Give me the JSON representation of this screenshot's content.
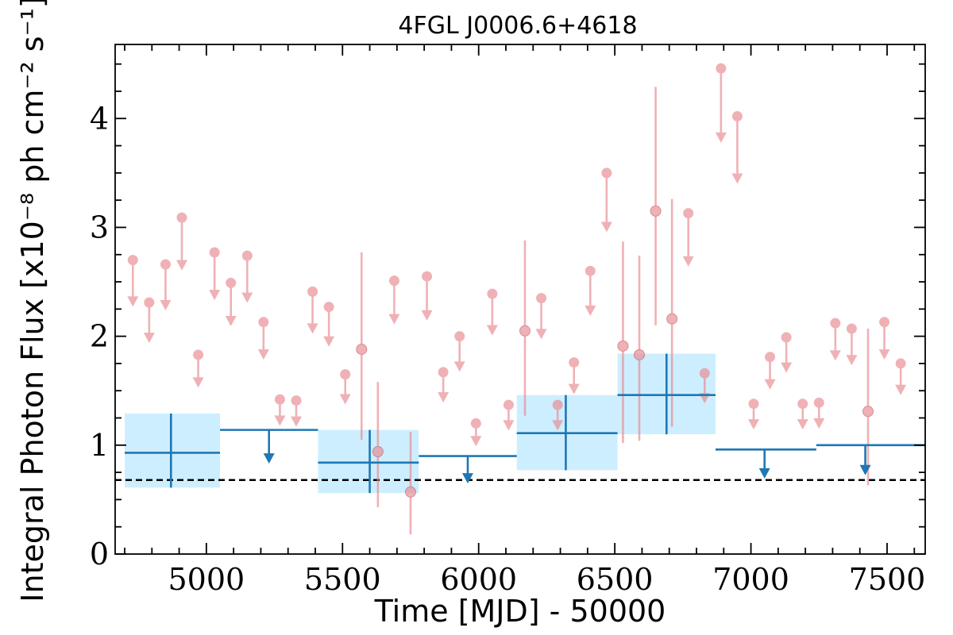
{
  "chart_data": {
    "type": "scatter",
    "title": "4FGL J0006.6+4618",
    "xlabel": "Time [MJD] - 50000",
    "ylabel": "Integral Photon Flux [x10⁻⁸ ph cm⁻² s⁻¹]",
    "xlim": [
      4665,
      7640
    ],
    "ylim": [
      0,
      4.68
    ],
    "x_ticks": [
      5000,
      5500,
      6000,
      6500,
      7000,
      7500
    ],
    "x_tick_labels": [
      "5000",
      "5500",
      "6000",
      "6500",
      "7000",
      "7500"
    ],
    "y_ticks": [
      0,
      1,
      2,
      3,
      4
    ],
    "y_tick_labels": [
      "0",
      "1",
      "2",
      "3",
      "4"
    ],
    "reference_level": 0.68,
    "colors": {
      "short_bins": "#e8888e",
      "long_bins": "#1f77b4",
      "long_bins_band": "#cdeeff",
      "reference_line": "#000000"
    },
    "long_bins": [
      {
        "x": 4870,
        "x_low": 4700,
        "x_high": 5050,
        "y": 0.93,
        "y_low": 0.61,
        "y_high": 1.29,
        "upper_limit": false
      },
      {
        "x": 5230,
        "x_low": 5050,
        "x_high": 5410,
        "y": 1.14,
        "upper_limit": true
      },
      {
        "x": 5600,
        "x_low": 5410,
        "x_high": 5780,
        "y": 0.84,
        "y_low": 0.56,
        "y_high": 1.14,
        "upper_limit": false
      },
      {
        "x": 5960,
        "x_low": 5780,
        "x_high": 6140,
        "y": 0.9,
        "upper_limit": true
      },
      {
        "x": 6320,
        "x_low": 6140,
        "x_high": 6510,
        "y": 1.11,
        "y_low": 0.77,
        "y_high": 1.46,
        "upper_limit": false
      },
      {
        "x": 6690,
        "x_low": 6510,
        "x_high": 6870,
        "y": 1.46,
        "y_low": 1.1,
        "y_high": 1.84,
        "upper_limit": false
      },
      {
        "x": 7050,
        "x_low": 6870,
        "x_high": 7240,
        "y": 0.96,
        "upper_limit": true
      },
      {
        "x": 7420,
        "x_low": 7240,
        "x_high": 7640,
        "y": 1.0,
        "upper_limit": true
      }
    ],
    "short_bins": [
      {
        "x": 4730,
        "y": 2.7,
        "upper_limit": true
      },
      {
        "x": 4790,
        "y": 2.31,
        "upper_limit": true
      },
      {
        "x": 4850,
        "y": 2.66,
        "upper_limit": true
      },
      {
        "x": 4910,
        "y": 3.09,
        "upper_limit": true
      },
      {
        "x": 4970,
        "y": 1.83,
        "upper_limit": true
      },
      {
        "x": 5030,
        "y": 2.77,
        "upper_limit": true
      },
      {
        "x": 5090,
        "y": 2.49,
        "upper_limit": true
      },
      {
        "x": 5150,
        "y": 2.74,
        "upper_limit": true
      },
      {
        "x": 5210,
        "y": 2.13,
        "upper_limit": true
      },
      {
        "x": 5270,
        "y": 1.42,
        "upper_limit": true
      },
      {
        "x": 5330,
        "y": 1.41,
        "upper_limit": true
      },
      {
        "x": 5390,
        "y": 2.41,
        "upper_limit": true
      },
      {
        "x": 5450,
        "y": 2.27,
        "upper_limit": true
      },
      {
        "x": 5510,
        "y": 1.65,
        "upper_limit": true
      },
      {
        "x": 5570,
        "y": 1.88,
        "y_low": 1.05,
        "y_high": 2.77,
        "upper_limit": false
      },
      {
        "x": 5630,
        "y": 0.94,
        "y_low": 0.43,
        "y_high": 1.58,
        "upper_limit": false
      },
      {
        "x": 5690,
        "y": 2.51,
        "upper_limit": true
      },
      {
        "x": 5750,
        "y": 0.57,
        "y_low": 0.18,
        "y_high": 1.12,
        "upper_limit": false
      },
      {
        "x": 5810,
        "y": 2.55,
        "upper_limit": true
      },
      {
        "x": 5870,
        "y": 1.67,
        "upper_limit": true
      },
      {
        "x": 5930,
        "y": 2.0,
        "upper_limit": true
      },
      {
        "x": 5990,
        "y": 1.2,
        "upper_limit": true
      },
      {
        "x": 6050,
        "y": 2.39,
        "upper_limit": true
      },
      {
        "x": 6110,
        "y": 1.37,
        "upper_limit": true
      },
      {
        "x": 6170,
        "y": 2.05,
        "y_low": 1.27,
        "y_high": 2.88,
        "upper_limit": false
      },
      {
        "x": 6230,
        "y": 2.35,
        "upper_limit": true
      },
      {
        "x": 6290,
        "y": 1.37,
        "upper_limit": true
      },
      {
        "x": 6350,
        "y": 1.76,
        "upper_limit": true
      },
      {
        "x": 6410,
        "y": 2.6,
        "upper_limit": true
      },
      {
        "x": 6470,
        "y": 3.5,
        "upper_limit": true
      },
      {
        "x": 6530,
        "y": 1.91,
        "y_low": 1.02,
        "y_high": 2.87,
        "upper_limit": false
      },
      {
        "x": 6590,
        "y": 1.83,
        "y_low": 1.04,
        "y_high": 2.74,
        "upper_limit": false
      },
      {
        "x": 6650,
        "y": 3.15,
        "y_low": 2.1,
        "y_high": 4.29,
        "upper_limit": false
      },
      {
        "x": 6710,
        "y": 2.16,
        "y_low": 1.17,
        "y_high": 3.26,
        "upper_limit": false
      },
      {
        "x": 6770,
        "y": 3.13,
        "upper_limit": true
      },
      {
        "x": 6830,
        "y": 1.66,
        "upper_limit": true
      },
      {
        "x": 6890,
        "y": 4.46,
        "upper_limit": true
      },
      {
        "x": 6950,
        "y": 4.02,
        "upper_limit": true
      },
      {
        "x": 7010,
        "y": 1.38,
        "upper_limit": true
      },
      {
        "x": 7070,
        "y": 1.81,
        "upper_limit": true
      },
      {
        "x": 7130,
        "y": 1.99,
        "upper_limit": true
      },
      {
        "x": 7190,
        "y": 1.38,
        "upper_limit": true
      },
      {
        "x": 7250,
        "y": 1.39,
        "upper_limit": true
      },
      {
        "x": 7310,
        "y": 2.12,
        "upper_limit": true
      },
      {
        "x": 7370,
        "y": 2.07,
        "upper_limit": true
      },
      {
        "x": 7430,
        "y": 1.31,
        "y_low": 0.63,
        "y_high": 2.07,
        "upper_limit": false
      },
      {
        "x": 7490,
        "y": 2.13,
        "upper_limit": true
      },
      {
        "x": 7550,
        "y": 1.75,
        "upper_limit": true
      }
    ]
  }
}
